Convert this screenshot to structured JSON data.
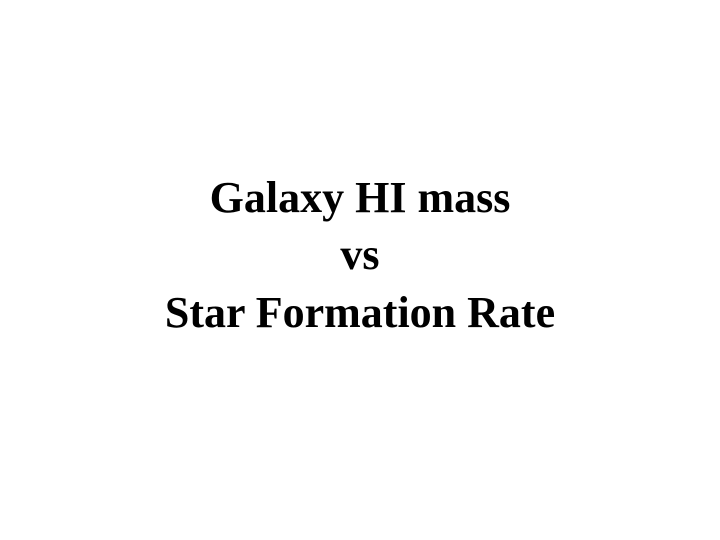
{
  "slide": {
    "line1": "Galaxy HI mass",
    "line2": "vs",
    "line3": "Star Formation Rate",
    "font_family": "Times New Roman",
    "font_size_pt": 44,
    "font_weight": "bold",
    "text_color": "#000000",
    "background_color": "#ffffff"
  }
}
